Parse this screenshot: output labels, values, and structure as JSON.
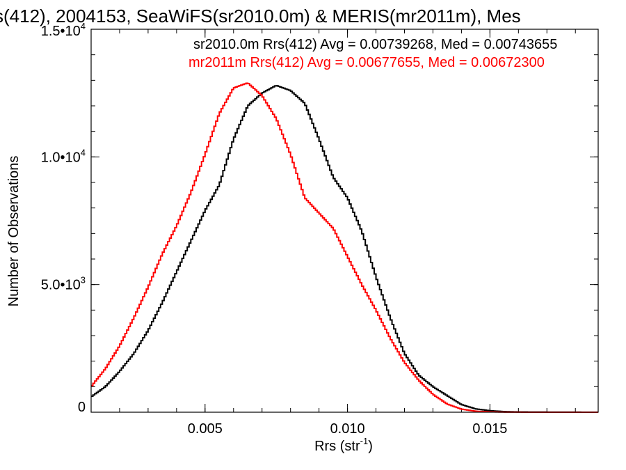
{
  "chart_data": {
    "type": "line",
    "title": "s(412), 2004153, SeaWiFS(sr2010.0m) & MERIS(mr2011m), Mes",
    "xlabel": "Rrs (str",
    "xlabel_sup": "-1",
    "xlabel_close": ")",
    "ylabel": "Number of Observations",
    "xlim": [
      0.001,
      0.0188
    ],
    "ylim": [
      0,
      15000
    ],
    "x_ticks": [
      {
        "value": 0.005,
        "label": "0.005"
      },
      {
        "value": 0.01,
        "label": "0.010"
      },
      {
        "value": 0.015,
        "label": "0.015"
      }
    ],
    "y_ticks": [
      {
        "value": 0,
        "mant": "0",
        "exp": ""
      },
      {
        "value": 5000,
        "mant": "5.0•10",
        "exp": "3"
      },
      {
        "value": 10000,
        "mant": "1.0•10",
        "exp": "4"
      },
      {
        "value": 15000,
        "mant": "1.5•10",
        "exp": "4"
      }
    ],
    "grid": false,
    "legend_position": "top-right",
    "series": [
      {
        "name": "sr2010.0m Rrs(412) Avg = 0.00739268, Med = 0.00743655",
        "color": "#000000",
        "x": [
          0.001,
          0.0015,
          0.002,
          0.0025,
          0.003,
          0.0035,
          0.004,
          0.0045,
          0.005,
          0.0055,
          0.006,
          0.0065,
          0.007,
          0.0075,
          0.008,
          0.0085,
          0.009,
          0.0095,
          0.01,
          0.0105,
          0.011,
          0.0115,
          0.012,
          0.0125,
          0.013,
          0.0135,
          0.014,
          0.0145,
          0.015,
          0.0155,
          0.016,
          0.017,
          0.0188
        ],
        "y": [
          600,
          1000,
          1600,
          2300,
          3200,
          4300,
          5500,
          6700,
          7900,
          8900,
          10700,
          12000,
          12500,
          12800,
          12600,
          12100,
          10700,
          9200,
          8400,
          7100,
          5300,
          3700,
          2300,
          1450,
          1000,
          650,
          300,
          130,
          60,
          25,
          10,
          5,
          0
        ]
      },
      {
        "name": "mr2011m Rrs(412) Avg = 0.00677655, Med = 0.00672300",
        "color": "#ff0000",
        "x": [
          0.001,
          0.0015,
          0.002,
          0.0025,
          0.003,
          0.0035,
          0.004,
          0.0045,
          0.005,
          0.0055,
          0.006,
          0.0065,
          0.007,
          0.0075,
          0.008,
          0.0085,
          0.009,
          0.0095,
          0.01,
          0.0105,
          0.011,
          0.0115,
          0.012,
          0.0125,
          0.013,
          0.0135,
          0.014,
          0.0145,
          0.015,
          0.0155,
          0.016,
          0.017,
          0.0188
        ],
        "y": [
          1000,
          1700,
          2600,
          3700,
          4900,
          6200,
          7300,
          8600,
          10100,
          11700,
          12700,
          12900,
          12400,
          11500,
          10100,
          8400,
          7800,
          7200,
          6100,
          5000,
          4000,
          2900,
          1950,
          1250,
          700,
          320,
          120,
          40,
          15,
          5,
          2,
          0,
          0
        ]
      }
    ]
  }
}
